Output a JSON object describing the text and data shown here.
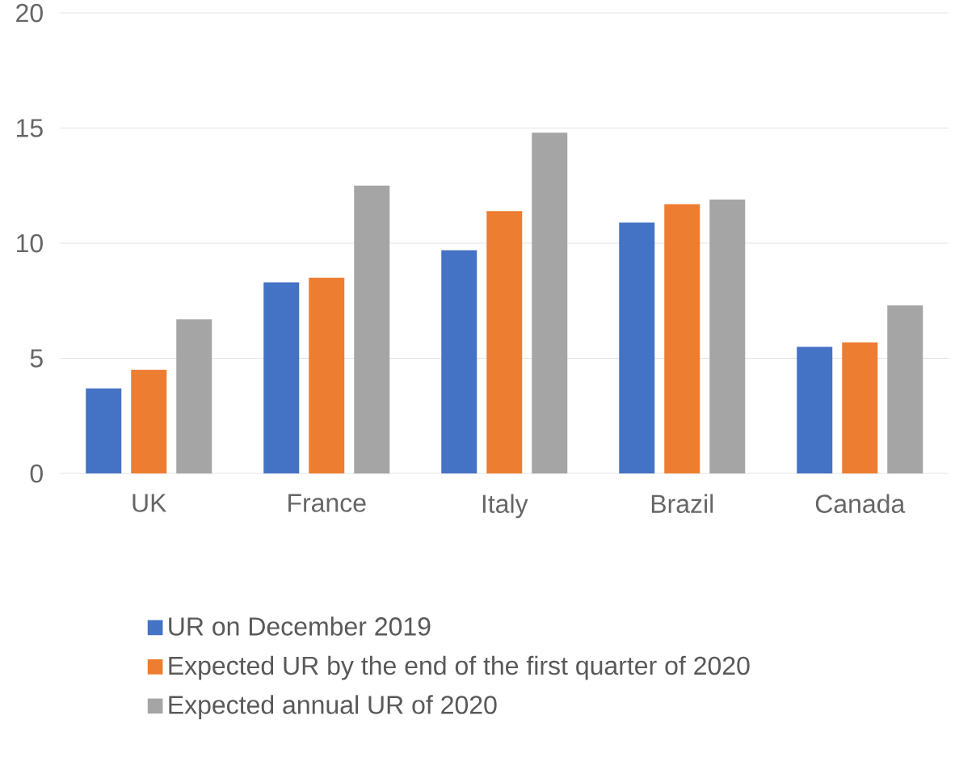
{
  "chart_data": {
    "type": "bar",
    "categories": [
      "UK",
      "France",
      "Italy",
      "Brazil",
      "Canada"
    ],
    "series": [
      {
        "name": "UR on December 2019",
        "color": "#4472c4",
        "values": [
          3.7,
          8.3,
          9.7,
          10.9,
          5.5
        ]
      },
      {
        "name": "Expected UR by the end of the first quarter of 2020",
        "color": "#ed7d31",
        "values": [
          4.5,
          8.5,
          11.4,
          11.7,
          5.7
        ]
      },
      {
        "name": "Expected annual UR of 2020",
        "color": "#a5a5a5",
        "values": [
          6.7,
          12.5,
          14.8,
          11.9,
          7.3
        ]
      }
    ],
    "ylim": [
      0,
      20
    ],
    "yticks": [
      0,
      5,
      10,
      15,
      20
    ],
    "grid": "y",
    "legend": "bottom"
  }
}
